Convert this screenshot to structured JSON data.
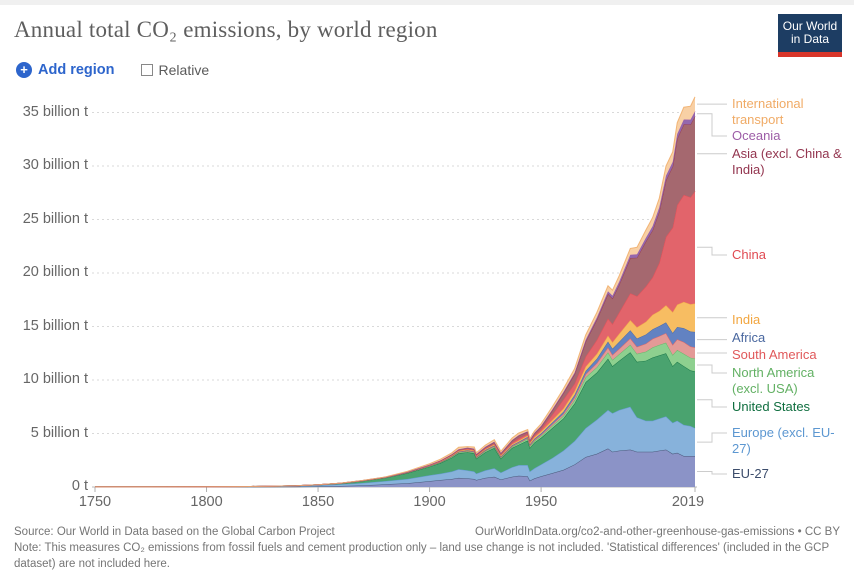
{
  "header": {
    "title": "Annual total CO₂ emissions, by world region",
    "logo_line1": "Our World",
    "logo_line2": "in Data"
  },
  "controls": {
    "add_region_label": "Add region",
    "relative_label": "Relative",
    "relative_checked": false,
    "accent_blue": "#2d65cc"
  },
  "chart_data": {
    "type": "area",
    "stacked": true,
    "title": "Annual total CO₂ emissions, by world region",
    "unit": "tonnes of CO₂",
    "grid": "dashed-horizontal",
    "legend_position": "right",
    "xlim": [
      1750,
      2019
    ],
    "ylim": [
      0,
      37
    ],
    "x_tick_years": [
      1750,
      1800,
      1850,
      1900,
      1950,
      2019
    ],
    "x_tick_labels": [
      "1750",
      "1800",
      "1850",
      "1900",
      "1950",
      "2019"
    ],
    "y_tick_values": [
      0,
      5,
      10,
      15,
      20,
      25,
      30,
      35
    ],
    "y_tick_labels": [
      "0 t",
      "5 billion t",
      "10 billion t",
      "15 billion t",
      "20 billion t",
      "25 billion t",
      "30 billion t",
      "35 billion t"
    ],
    "x": [
      1750,
      1775,
      1800,
      1820,
      1840,
      1850,
      1860,
      1870,
      1880,
      1890,
      1900,
      1905,
      1910,
      1913,
      1917,
      1920,
      1921,
      1925,
      1929,
      1932,
      1937,
      1940,
      1944,
      1945,
      1947,
      1950,
      1955,
      1960,
      1965,
      1970,
      1975,
      1980,
      1982,
      1985,
      1990,
      1993,
      1997,
      2000,
      2003,
      2006,
      2009,
      2011,
      2014,
      2017,
      2019
    ],
    "values_unit": "billion tonnes CO2 per year",
    "series": [
      {
        "key": "eu27",
        "label": "EU-27",
        "fill": "#8b93c7",
        "text_color": "#3b4c6b",
        "values": [
          0.002,
          0.003,
          0.005,
          0.01,
          0.03,
          0.05,
          0.09,
          0.15,
          0.25,
          0.35,
          0.55,
          0.65,
          0.75,
          0.85,
          0.8,
          0.75,
          0.65,
          0.85,
          0.95,
          0.7,
          0.95,
          1.05,
          1.0,
          0.6,
          0.8,
          1.0,
          1.3,
          1.6,
          2.1,
          2.8,
          3.1,
          3.6,
          3.3,
          3.4,
          3.5,
          3.3,
          3.3,
          3.3,
          3.4,
          3.5,
          3.1,
          3.2,
          2.9,
          2.9,
          2.9
        ]
      },
      {
        "key": "europe",
        "label": "Europe (excl. EU-27)",
        "fill": "#87b2db",
        "text_color": "#5c97d1",
        "values": [
          0.004,
          0.007,
          0.015,
          0.03,
          0.07,
          0.1,
          0.15,
          0.22,
          0.3,
          0.4,
          0.55,
          0.6,
          0.7,
          0.8,
          0.75,
          0.7,
          0.6,
          0.7,
          0.8,
          0.65,
          0.9,
          1.0,
          1.05,
          0.85,
          0.95,
          1.1,
          1.4,
          1.8,
          2.2,
          2.7,
          3.2,
          3.6,
          3.6,
          3.8,
          4.0,
          3.2,
          2.9,
          2.9,
          3.0,
          3.1,
          2.9,
          3.0,
          2.9,
          2.8,
          2.6
        ]
      },
      {
        "key": "usa",
        "label": "United States",
        "fill": "#4aa36f",
        "text_color": "#0f6e3f",
        "values": [
          0,
          0,
          0.001,
          0.005,
          0.02,
          0.05,
          0.1,
          0.2,
          0.3,
          0.55,
          0.8,
          1.0,
          1.3,
          1.5,
          1.7,
          1.7,
          1.4,
          1.7,
          1.9,
          1.3,
          1.8,
          1.9,
          2.3,
          2.2,
          2.4,
          2.5,
          2.8,
          3.0,
          3.5,
          4.3,
          4.4,
          4.8,
          4.4,
          4.6,
          5.1,
          5.2,
          5.6,
          5.9,
          5.9,
          5.9,
          5.3,
          5.5,
          5.5,
          5.2,
          5.3
        ]
      },
      {
        "key": "namerica",
        "label": "North America (excl. USA)",
        "fill": "#8ed08f",
        "text_color": "#63b164",
        "values": [
          0,
          0,
          0,
          0,
          0.001,
          0.002,
          0.005,
          0.01,
          0.02,
          0.03,
          0.05,
          0.06,
          0.08,
          0.09,
          0.1,
          0.1,
          0.09,
          0.11,
          0.12,
          0.09,
          0.12,
          0.13,
          0.16,
          0.16,
          0.17,
          0.18,
          0.22,
          0.25,
          0.33,
          0.45,
          0.5,
          0.6,
          0.58,
          0.62,
          0.7,
          0.75,
          0.85,
          0.95,
          0.98,
          1.0,
          1.05,
          1.1,
          1.15,
          1.18,
          1.2
        ]
      },
      {
        "key": "samerica",
        "label": "South America",
        "fill": "#e39a97",
        "text_color": "#e0585a",
        "values": [
          0,
          0,
          0,
          0,
          0,
          0.001,
          0.002,
          0.005,
          0.01,
          0.015,
          0.02,
          0.025,
          0.03,
          0.035,
          0.04,
          0.04,
          0.04,
          0.045,
          0.05,
          0.05,
          0.06,
          0.07,
          0.08,
          0.08,
          0.09,
          0.11,
          0.14,
          0.18,
          0.23,
          0.3,
          0.38,
          0.45,
          0.47,
          0.5,
          0.6,
          0.65,
          0.75,
          0.8,
          0.82,
          0.88,
          0.95,
          1.0,
          1.1,
          1.05,
          1.05
        ]
      },
      {
        "key": "africa",
        "label": "Africa",
        "fill": "#6282c2",
        "text_color": "#49679f",
        "values": [
          0,
          0,
          0,
          0,
          0,
          0.001,
          0.002,
          0.004,
          0.008,
          0.012,
          0.02,
          0.025,
          0.03,
          0.035,
          0.04,
          0.04,
          0.04,
          0.05,
          0.06,
          0.06,
          0.07,
          0.08,
          0.09,
          0.09,
          0.1,
          0.12,
          0.16,
          0.2,
          0.25,
          0.3,
          0.42,
          0.55,
          0.58,
          0.65,
          0.75,
          0.78,
          0.85,
          0.9,
          0.95,
          1.0,
          1.1,
          1.15,
          1.3,
          1.4,
          1.45
        ]
      },
      {
        "key": "india",
        "label": "India",
        "fill": "#f7bd62",
        "text_color": "#f2a640",
        "values": [
          0,
          0,
          0,
          0,
          0,
          0.001,
          0.003,
          0.006,
          0.01,
          0.02,
          0.04,
          0.05,
          0.06,
          0.065,
          0.07,
          0.07,
          0.07,
          0.08,
          0.09,
          0.09,
          0.1,
          0.12,
          0.13,
          0.13,
          0.15,
          0.18,
          0.23,
          0.3,
          0.35,
          0.4,
          0.45,
          0.55,
          0.6,
          0.75,
          0.95,
          1.05,
          1.2,
          1.35,
          1.4,
          1.6,
          1.95,
          2.1,
          2.45,
          2.55,
          2.65
        ]
      },
      {
        "key": "china",
        "label": "China",
        "fill": "#e2646b",
        "text_color": "#e04a52",
        "values": [
          0,
          0,
          0,
          0,
          0,
          0,
          0.001,
          0.003,
          0.006,
          0.01,
          0.02,
          0.03,
          0.04,
          0.05,
          0.06,
          0.06,
          0.06,
          0.07,
          0.08,
          0.08,
          0.15,
          0.2,
          0.15,
          0.1,
          0.15,
          0.2,
          0.5,
          0.85,
          0.7,
          0.95,
          1.3,
          1.6,
          1.7,
          2.0,
          2.5,
          2.9,
          3.3,
          3.5,
          4.5,
          6.4,
          7.9,
          9.3,
          10.0,
          10.0,
          10.5
        ]
      },
      {
        "key": "asia",
        "label": "Asia (excl. China & India)",
        "fill": "#a5686f",
        "text_color": "#93354f",
        "values": [
          0,
          0,
          0,
          0,
          0,
          0.001,
          0.002,
          0.003,
          0.005,
          0.015,
          0.03,
          0.045,
          0.06,
          0.08,
          0.09,
          0.1,
          0.1,
          0.12,
          0.15,
          0.14,
          0.2,
          0.25,
          0.2,
          0.15,
          0.2,
          0.25,
          0.4,
          0.6,
          0.9,
          1.4,
          1.9,
          2.3,
          2.4,
          2.6,
          3.3,
          3.6,
          4.2,
          4.4,
          4.8,
          5.3,
          5.7,
          6.2,
          6.6,
          6.8,
          7.0
        ]
      },
      {
        "key": "oceania",
        "label": "Oceania",
        "fill": "#9468ae",
        "text_color": "#9d5da7",
        "values": [
          0,
          0,
          0,
          0,
          0,
          0.001,
          0.002,
          0.003,
          0.005,
          0.01,
          0.015,
          0.02,
          0.025,
          0.03,
          0.03,
          0.03,
          0.03,
          0.035,
          0.04,
          0.04,
          0.045,
          0.05,
          0.055,
          0.055,
          0.06,
          0.07,
          0.085,
          0.1,
          0.13,
          0.16,
          0.2,
          0.25,
          0.26,
          0.28,
          0.3,
          0.32,
          0.35,
          0.38,
          0.4,
          0.42,
          0.43,
          0.44,
          0.45,
          0.46,
          0.46
        ]
      },
      {
        "key": "transport",
        "label": "International transport",
        "fill": "#f8d0a5",
        "text_color": "#f0ab66",
        "values": [
          0,
          0,
          0,
          0,
          0,
          0.002,
          0.005,
          0.01,
          0.02,
          0.05,
          0.08,
          0.1,
          0.12,
          0.18,
          0.1,
          0.15,
          0.13,
          0.16,
          0.18,
          0.15,
          0.18,
          0.2,
          0.15,
          0.12,
          0.15,
          0.2,
          0.25,
          0.3,
          0.38,
          0.45,
          0.48,
          0.5,
          0.5,
          0.55,
          0.6,
          0.65,
          0.72,
          0.8,
          0.85,
          0.9,
          0.95,
          1.05,
          1.15,
          1.25,
          1.35
        ]
      }
    ]
  },
  "footer": {
    "source": "Source: Our World in Data based on the Global Carbon Project",
    "link": "OurWorldInData.org/co2-and-other-greenhouse-gas-emissions • CC BY",
    "note": "Note: This measures CO₂ emissions from fossil fuels and cement production only – land use change is not included. 'Statistical differences' (included in the GCP dataset) are not included here."
  }
}
